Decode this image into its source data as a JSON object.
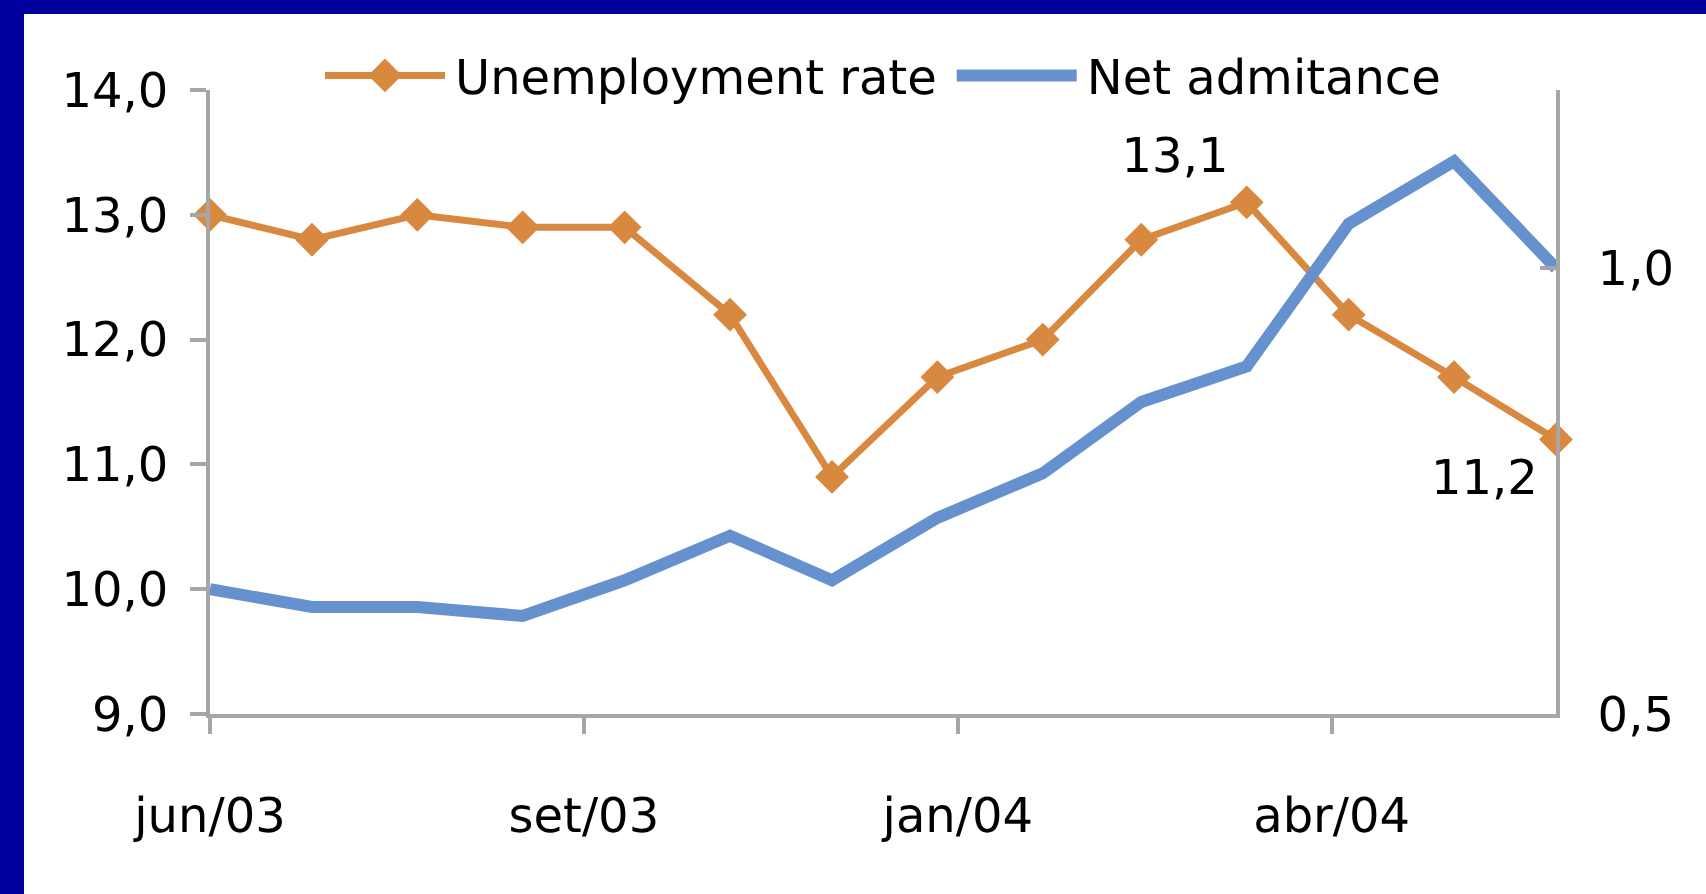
{
  "chart_data": {
    "type": "line",
    "x": [
      "2003-06",
      "2003-07",
      "2003-08",
      "2003-09",
      "2003-10",
      "2003-11",
      "2003-12",
      "2004-01",
      "2004-02",
      "2004-03",
      "2004-04",
      "2004-05",
      "2004-06",
      "2004-07"
    ],
    "xlim": [
      "2003-06",
      "2004-07"
    ],
    "xticks": [
      {
        "value": "2003-06-01",
        "label": "jun/03"
      },
      {
        "value": "2003-09-19",
        "label": "set/03"
      },
      {
        "value": "2004-01-07",
        "label": "jan/04"
      },
      {
        "value": "2004-04-26",
        "label": "abr/04"
      }
    ],
    "ylim": [
      9,
      14
    ],
    "yticks": [
      {
        "value": 9,
        "label": "9,0"
      },
      {
        "value": 10,
        "label": "10,0"
      },
      {
        "value": 11,
        "label": "11,0"
      },
      {
        "value": 12,
        "label": "12,0"
      },
      {
        "value": 13,
        "label": "13,0"
      },
      {
        "value": 14,
        "label": "14,0"
      }
    ],
    "y2lim": [
      0.5,
      1.2
    ],
    "y2ticks": [
      {
        "value": 0.5,
        "label": "0,5"
      },
      {
        "value": 1,
        "label": "1,0"
      }
    ],
    "series": [
      {
        "name": "Unemployment rate",
        "color": "#d9883f",
        "marker": "diamond",
        "values": [
          13.0,
          12.8,
          13.0,
          12.9,
          12.9,
          12.2,
          10.9,
          11.7,
          12.0,
          12.8,
          13.1,
          12.2,
          11.7,
          11.2
        ],
        "value_labels": [
          null,
          null,
          null,
          null,
          null,
          null,
          null,
          null,
          null,
          null,
          "13,1",
          null,
          null,
          "11,2"
        ]
      },
      {
        "name": "Net admitance",
        "color": "#6592cf",
        "axis": "y2",
        "marker": "none",
        "values": [
          0.64,
          0.62,
          0.62,
          0.61,
          0.65,
          0.7,
          0.65,
          0.72,
          0.77,
          0.85,
          0.89,
          1.05,
          1.12,
          1.0
        ]
      }
    ],
    "legend": "top"
  }
}
